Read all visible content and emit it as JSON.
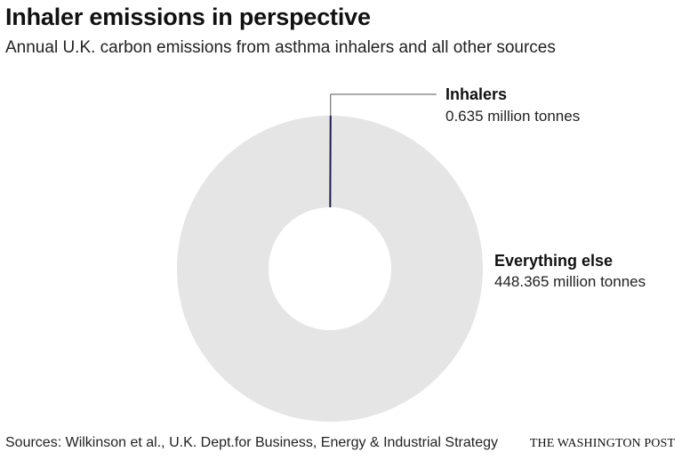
{
  "title": "Inhaler emissions in perspective",
  "subtitle": "Annual U.K. carbon emissions from asthma inhalers and all other sources",
  "chart_data": {
    "type": "pie",
    "donut": true,
    "unit": "million tonnes",
    "slices": [
      {
        "label": "Inhalers",
        "value": 0.635,
        "value_text": "0.635 million tonnes",
        "color": "#1b1f4a"
      },
      {
        "label": "Everything else",
        "value": 448.365,
        "value_text": "448.365 million tonnes",
        "color": "#e5e5e5"
      }
    ]
  },
  "footer": {
    "source": "Sources: Wilkinson et al., U.K. Dept.for Business, Energy & Industrial Strategy",
    "credit": "THE WASHINGTON POST"
  }
}
